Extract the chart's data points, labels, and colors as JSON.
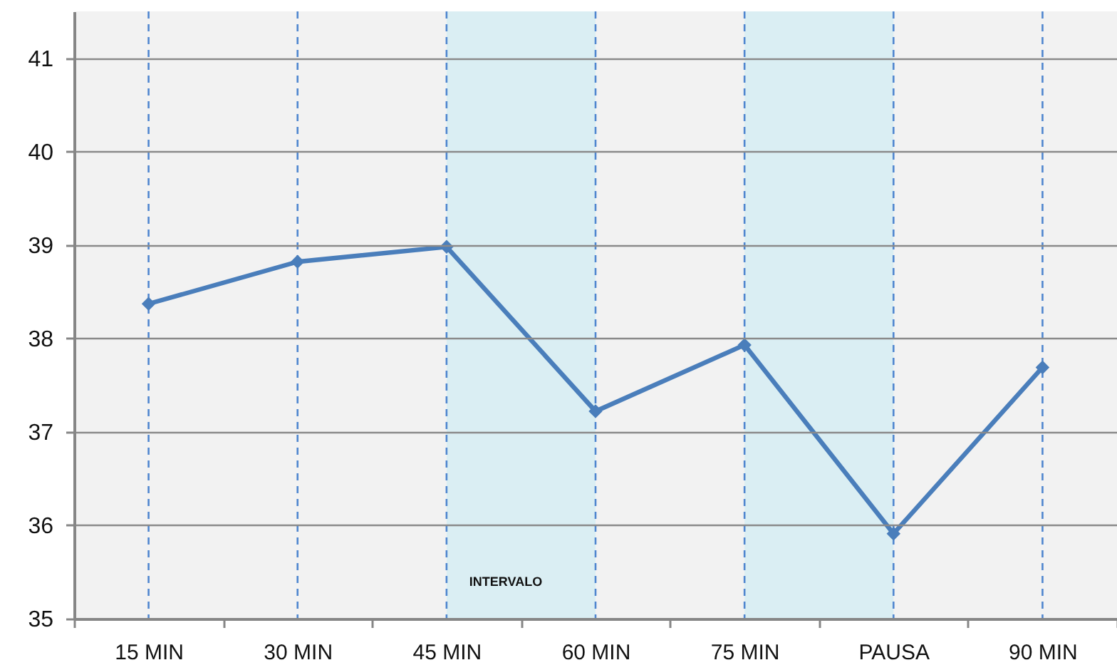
{
  "chart_data": {
    "type": "line",
    "categories": [
      "15 MIN",
      "30 MIN",
      "45 MIN",
      "60 MIN",
      "75 MIN",
      "PAUSA",
      "90 MIN"
    ],
    "series": [
      {
        "color": "#4a7ebb",
        "values": [
          38.37,
          38.82,
          38.98,
          37.22,
          37.93,
          35.91,
          37.69
        ]
      }
    ],
    "ylim": [
      35,
      41.5
    ],
    "yticks": [
      35,
      36,
      37,
      38,
      39,
      40,
      41
    ],
    "grid": "y",
    "marker": "diamond",
    "line_style": "solid",
    "bands": [
      {
        "axis": "x",
        "from": "45 MIN",
        "to": "60 MIN",
        "label": "INTERVALO",
        "color": "#daeef3"
      },
      {
        "axis": "x",
        "from": "75 MIN",
        "to": "PAUSA",
        "color": "#daeef3"
      }
    ],
    "ref_lines": [
      {
        "axis": "x",
        "value": "15 MIN",
        "line_style": "dashed",
        "color": "#4f86cf"
      },
      {
        "axis": "x",
        "value": "30 MIN",
        "line_style": "dashed",
        "color": "#4f86cf"
      },
      {
        "axis": "x",
        "value": "45 MIN",
        "line_style": "dashed",
        "color": "#4f86cf"
      },
      {
        "axis": "x",
        "value": "60 MIN",
        "line_style": "dashed",
        "color": "#4f86cf"
      },
      {
        "axis": "x",
        "value": "75 MIN",
        "line_style": "dashed",
        "color": "#4f86cf"
      },
      {
        "axis": "x",
        "value": "PAUSA",
        "line_style": "dashed",
        "color": "#4f86cf"
      },
      {
        "axis": "x",
        "value": "90 MIN",
        "line_style": "dashed",
        "color": "#4f86cf"
      }
    ]
  }
}
